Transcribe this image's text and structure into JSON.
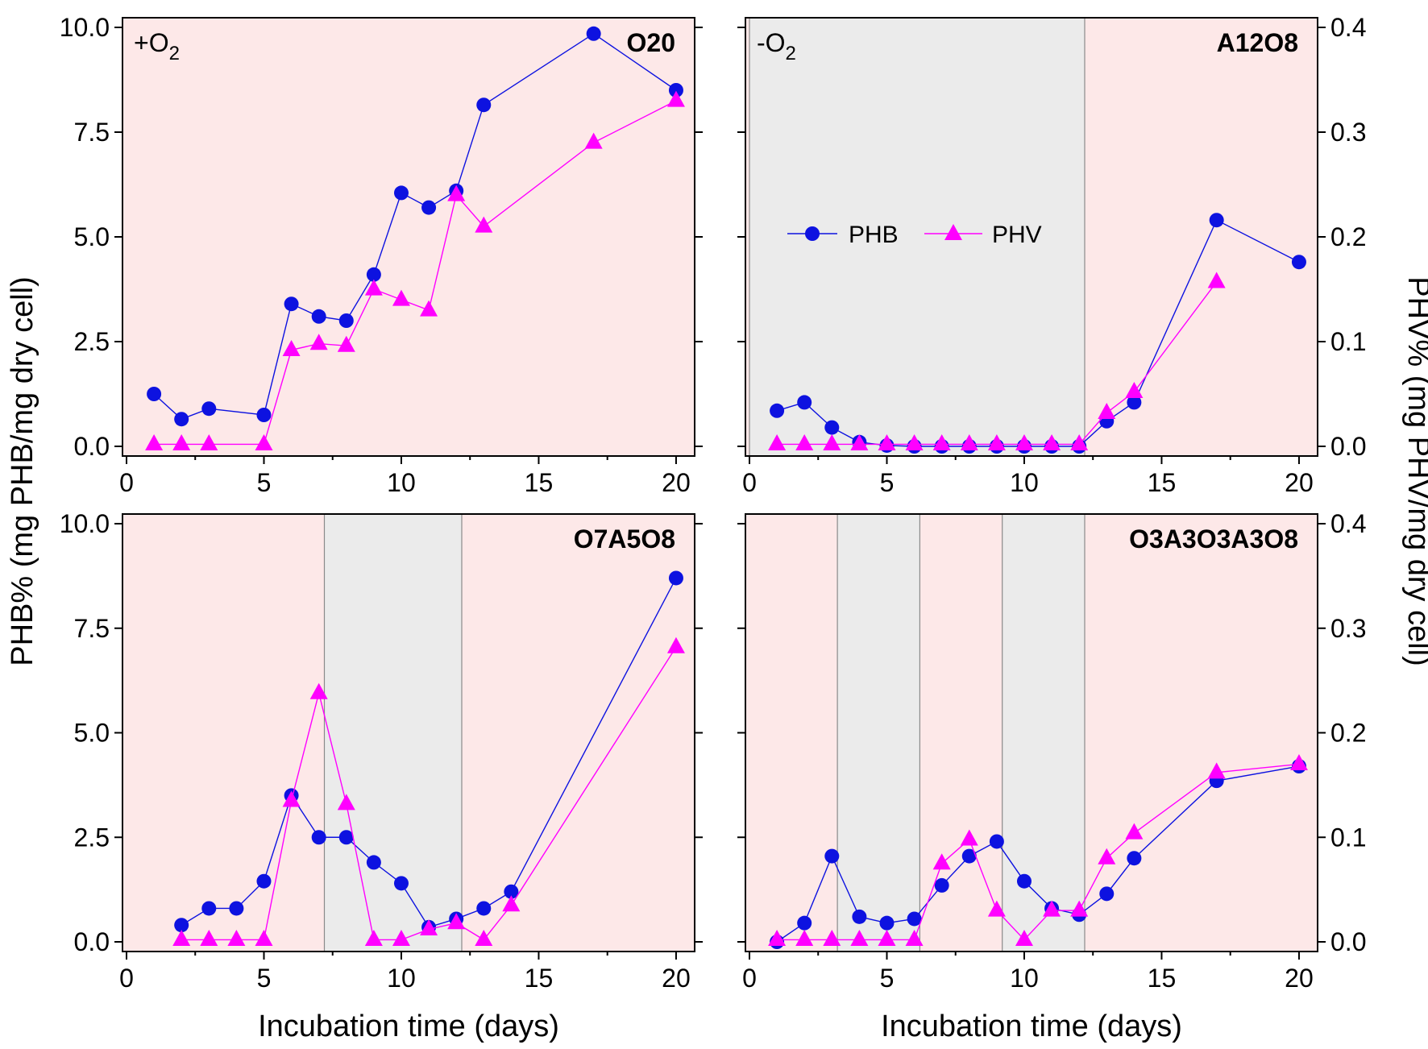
{
  "figure": {
    "colors": {
      "phb": "#0d12e0",
      "phv": "#ff00ff",
      "aerobic_bg": "#fde8e8",
      "anoxic_bg": "#ebebeb",
      "border": "#000000"
    },
    "left_axis_title": "PHB% (mg PHB/mg dry cell)",
    "right_axis_title": "PHV% (mg PHV/mg dry cell)",
    "x_axis_title": "Incubation time (days)",
    "legend": {
      "phb_label": "PHB",
      "phv_label": "PHV"
    },
    "x_ticks": [
      "0",
      "5",
      "10",
      "15",
      "20"
    ],
    "left_ticks": [
      "0.0",
      "2.5",
      "5.0",
      "7.5",
      "10.0"
    ],
    "right_ticks": [
      "0.0",
      "0.1",
      "0.2",
      "0.3",
      "0.4"
    ]
  },
  "chart_data": [
    {
      "type": "line",
      "panel": "top-left",
      "title": "O20",
      "condition_label": {
        "sign": "+O",
        "sub": "2"
      },
      "xlabel": "Incubation time (days)",
      "ylabel": "PHB% (mg PHB/mg dry cell)",
      "xlim": [
        0,
        20.5
      ],
      "ylim": [
        0,
        10
      ],
      "y2lim": [
        0,
        0.4
      ],
      "anoxic_intervals": [],
      "series": [
        {
          "name": "PHB",
          "axis": "left",
          "x": [
            1,
            2,
            3,
            5,
            6,
            7,
            8,
            9,
            10,
            11,
            12,
            13,
            17,
            20
          ],
          "values": [
            1.25,
            0.65,
            0.9,
            0.75,
            3.4,
            3.1,
            3.0,
            4.1,
            6.05,
            5.7,
            6.1,
            8.15,
            9.85,
            8.5
          ]
        },
        {
          "name": "PHV",
          "axis": "right",
          "x": [
            1,
            2,
            3,
            5,
            6,
            7,
            8,
            9,
            10,
            11,
            12,
            13,
            17,
            20
          ],
          "values": [
            0.002,
            0.002,
            0.002,
            0.002,
            0.092,
            0.098,
            0.096,
            0.15,
            0.14,
            0.13,
            0.24,
            0.21,
            0.29,
            0.33
          ]
        }
      ]
    },
    {
      "type": "line",
      "panel": "top-right",
      "title": "A12O8",
      "condition_label": {
        "sign": "-O",
        "sub": "2"
      },
      "xlabel": "Incubation time (days)",
      "ylabel": "PHV% (mg PHV/mg dry cell)",
      "xlim": [
        0,
        20.5
      ],
      "ylim": [
        0,
        10
      ],
      "y2lim": [
        0,
        0.4
      ],
      "anoxic_intervals": [
        [
          0,
          12.2
        ]
      ],
      "series": [
        {
          "name": "PHB",
          "axis": "left",
          "x": [
            1,
            2,
            3,
            4,
            5,
            6,
            7,
            8,
            9,
            10,
            11,
            12,
            13,
            14,
            17,
            20
          ],
          "values": [
            0.85,
            1.05,
            0.45,
            0.1,
            0.02,
            0.0,
            0.0,
            0.0,
            0.0,
            0.0,
            0.0,
            0.0,
            0.6,
            1.05,
            5.4,
            4.4
          ]
        },
        {
          "name": "PHV",
          "axis": "right",
          "x": [
            1,
            2,
            3,
            4,
            5,
            6,
            7,
            8,
            9,
            10,
            11,
            12,
            13,
            14,
            17,
            20
          ],
          "values": [
            0.002,
            0.002,
            0.002,
            0.002,
            0.002,
            0.002,
            0.002,
            0.002,
            0.002,
            0.002,
            0.002,
            0.002,
            0.032,
            0.052,
            0.157,
            null
          ]
        }
      ]
    },
    {
      "type": "line",
      "panel": "bottom-left",
      "title": "O7A5O8",
      "condition_label": null,
      "xlabel": "Incubation time (days)",
      "ylabel": "PHB% (mg PHB/mg dry cell)",
      "xlim": [
        0,
        20.5
      ],
      "ylim": [
        0,
        10
      ],
      "y2lim": [
        0,
        0.4
      ],
      "anoxic_intervals": [
        [
          7.2,
          12.2
        ]
      ],
      "series": [
        {
          "name": "PHB",
          "axis": "left",
          "x": [
            2,
            3,
            4,
            5,
            6,
            7,
            8,
            9,
            10,
            11,
            12,
            13,
            14,
            20
          ],
          "values": [
            0.4,
            0.8,
            0.8,
            1.45,
            3.5,
            2.5,
            2.5,
            1.9,
            1.4,
            0.35,
            0.55,
            0.8,
            1.2,
            8.7
          ]
        },
        {
          "name": "PHV",
          "axis": "right",
          "x": [
            2,
            3,
            4,
            5,
            6,
            7,
            8,
            9,
            10,
            11,
            12,
            13,
            14,
            20
          ],
          "values": [
            0.002,
            0.002,
            0.002,
            0.002,
            0.135,
            0.238,
            0.132,
            0.002,
            0.002,
            0.012,
            0.018,
            0.002,
            0.035,
            0.282
          ]
        }
      ]
    },
    {
      "type": "line",
      "panel": "bottom-right",
      "title": "O3A3O3A3O8",
      "condition_label": null,
      "xlabel": "Incubation time (days)",
      "ylabel": "PHV% (mg PHV/mg dry cell)",
      "xlim": [
        0,
        20.5
      ],
      "ylim": [
        0,
        10
      ],
      "y2lim": [
        0,
        0.4
      ],
      "anoxic_intervals": [
        [
          3.2,
          6.2
        ],
        [
          9.2,
          12.2
        ]
      ],
      "series": [
        {
          "name": "PHB",
          "axis": "left",
          "x": [
            1,
            2,
            3,
            4,
            5,
            6,
            7,
            8,
            9,
            10,
            11,
            12,
            13,
            14,
            17,
            20
          ],
          "values": [
            0.0,
            0.45,
            2.05,
            0.6,
            0.45,
            0.55,
            1.35,
            2.05,
            2.4,
            1.45,
            0.8,
            0.65,
            1.15,
            2.0,
            3.85,
            4.2
          ]
        },
        {
          "name": "PHV",
          "axis": "right",
          "x": [
            1,
            2,
            3,
            4,
            5,
            6,
            7,
            8,
            9,
            10,
            11,
            12,
            13,
            14,
            17,
            20
          ],
          "values": [
            0.002,
            0.002,
            0.002,
            0.002,
            0.002,
            0.002,
            0.075,
            0.098,
            0.03,
            0.002,
            0.03,
            0.03,
            0.08,
            0.104,
            0.162,
            0.17
          ]
        }
      ]
    }
  ]
}
